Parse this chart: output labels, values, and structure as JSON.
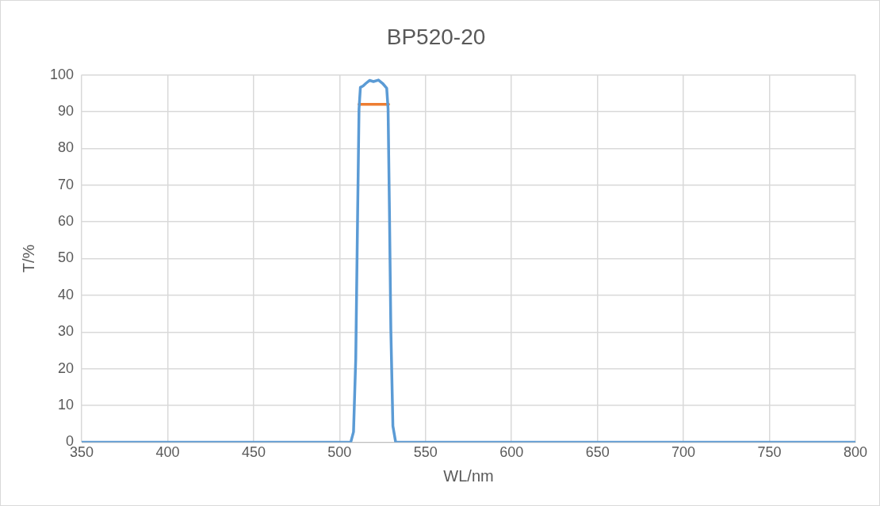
{
  "chart_data": {
    "type": "line",
    "title": "BP520-20",
    "xlabel": "WL/nm",
    "ylabel": "T/%",
    "xlim": [
      350,
      800
    ],
    "xticks": [
      350,
      400,
      450,
      500,
      550,
      600,
      650,
      700,
      750,
      800
    ],
    "ylim": [
      0,
      100
    ],
    "yticks": [
      0,
      10,
      20,
      30,
      40,
      50,
      60,
      70,
      80,
      90,
      100
    ],
    "grid": true,
    "legend": false,
    "marker": "none",
    "line_style": "solid",
    "series": [
      {
        "color": "#5b9bd5",
        "x": [
          350,
          506.5,
          508.1,
          509.4,
          510.5,
          511.3,
          512.1,
          513.7,
          515.3,
          517.4,
          519.7,
          522.6,
          525,
          527.4,
          528.2,
          529,
          529.8,
          531,
          532.6,
          800
        ],
        "values": [
          0,
          0,
          2.8,
          22.8,
          62.7,
          90.7,
          96.6,
          97,
          97.7,
          98.5,
          98.2,
          98.6,
          97.7,
          96.4,
          90.7,
          62.7,
          30.8,
          4.4,
          0,
          0
        ]
      },
      {
        "color": "#ed7d31",
        "x": [
          511.3,
          528.5
        ],
        "values": [
          92,
          92
        ]
      }
    ]
  }
}
